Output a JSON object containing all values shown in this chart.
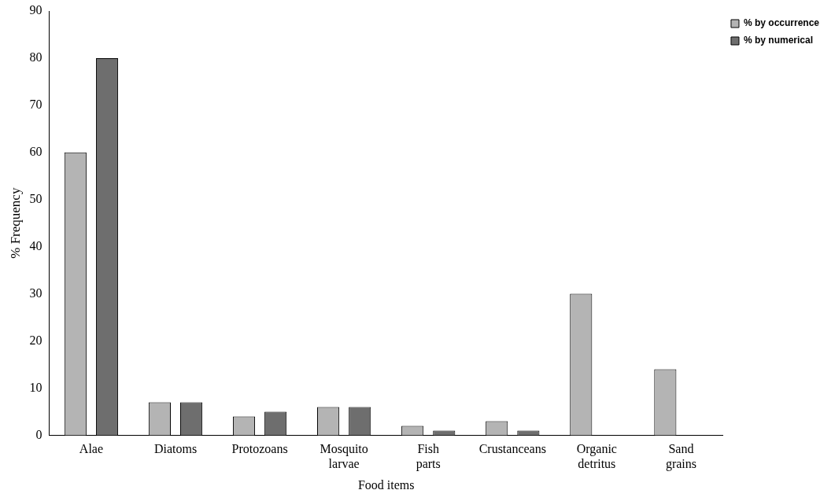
{
  "chart_data": {
    "type": "bar",
    "xlabel": "Food items",
    "ylabel": "% Frequency",
    "categories": [
      "Alae",
      "Diatoms",
      "Protozoans",
      "Mosquito larvae",
      "Fish parts",
      "Crustanceans",
      "Organic detritus",
      "Sand grains"
    ],
    "series": [
      {
        "name": "% by occurrence",
        "color": "#b4b4b4",
        "values": [
          60,
          7,
          4,
          6,
          2,
          3,
          30,
          14
        ]
      },
      {
        "name": "% by numerical",
        "color": "#6e6e6e",
        "values": [
          80,
          7,
          5,
          6,
          1,
          1,
          0,
          0
        ]
      }
    ],
    "ylim": [
      0,
      90
    ],
    "yticks": [
      0,
      10,
      20,
      30,
      40,
      50,
      60,
      70,
      80,
      90
    ],
    "grid": false,
    "legend": "right"
  }
}
